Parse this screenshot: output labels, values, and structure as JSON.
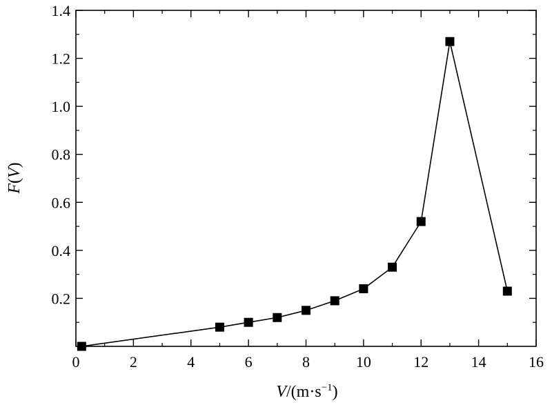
{
  "chart_data": {
    "type": "line",
    "title": "",
    "xlabel": {
      "var": "V",
      "unit_open": "/(m·s",
      "unit_exp": "−1",
      "unit_close": ")"
    },
    "ylabel": {
      "func": "F",
      "open": "(",
      "var": "V",
      "close": ")"
    },
    "xlim": [
      0,
      16
    ],
    "ylim": [
      0,
      1.4
    ],
    "x_ticks": [
      0,
      2,
      4,
      6,
      8,
      10,
      12,
      14,
      16
    ],
    "x_tick_labels": [
      "0",
      "2",
      "4",
      "6",
      "8",
      "10",
      "12",
      "14",
      "16"
    ],
    "y_ticks": [
      0.2,
      0.4,
      0.6,
      0.8,
      1.0,
      1.2,
      1.4
    ],
    "y_tick_labels": [
      "0.2",
      "0.4",
      "0.6",
      "0.8",
      "1.0",
      "1.2",
      "1.4"
    ],
    "grid": false,
    "marker": "square",
    "color": "#000000",
    "series": [
      {
        "x": [
          0.2,
          5,
          6,
          7,
          8,
          9,
          10,
          11,
          12,
          13,
          15
        ],
        "y": [
          0.0,
          0.08,
          0.1,
          0.12,
          0.15,
          0.19,
          0.24,
          0.33,
          0.52,
          1.27,
          0.23
        ]
      }
    ]
  }
}
